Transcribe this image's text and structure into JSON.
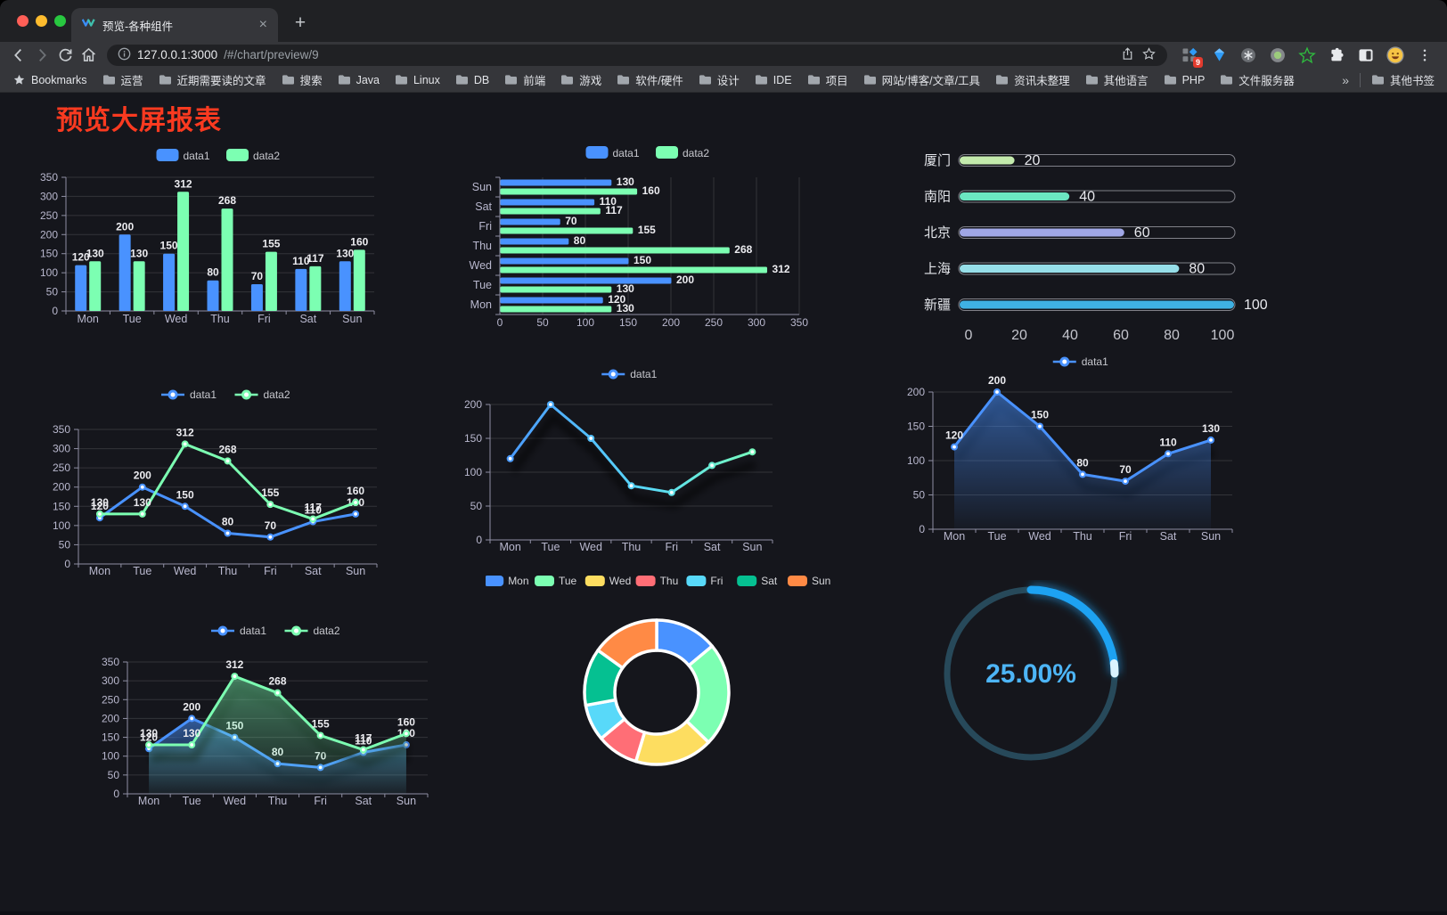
{
  "browser": {
    "tab": {
      "title": "预览-各种组件",
      "close_glyph": "×",
      "new_tab_glyph": "+"
    },
    "address": {
      "host": "127.0.0.1:3000",
      "path": "/#/chart/preview/9"
    },
    "extensions_badge": "9",
    "bookmarks": {
      "bookmarks_label": "Bookmarks",
      "folders": [
        "运营",
        "近期需要读的文章",
        "搜索",
        "Java",
        "Linux",
        "DB",
        "前端",
        "游戏",
        "软件/硬件",
        "设计",
        "IDE",
        "项目",
        "网站/博客/文章/工具",
        "资讯未整理",
        "其他语言",
        "PHP",
        "文件服务器"
      ],
      "overflow_chevron": "»",
      "other_bookmarks_label": "其他书签"
    }
  },
  "page": {
    "title": "预览大屏报表",
    "title_color": "#fb3a20",
    "background": "#15161c"
  },
  "palette": {
    "blue": "#4992ff",
    "green": "#7cffb2",
    "yellow": "#fddd60",
    "red": "#ff6e76",
    "cyan": "#58d9f9",
    "teal": "#05c091",
    "orange": "#ff8a45"
  },
  "chart_data": [
    {
      "id": "bar-vertical",
      "type": "bar",
      "categories": [
        "Mon",
        "Tue",
        "Wed",
        "Thu",
        "Fri",
        "Sat",
        "Sun"
      ],
      "series": [
        {
          "name": "data1",
          "color": "#4992ff",
          "values": [
            120,
            200,
            150,
            80,
            70,
            110,
            130
          ]
        },
        {
          "name": "data2",
          "color": "#7cffb2",
          "values": [
            130,
            130,
            312,
            268,
            155,
            117,
            160
          ]
        }
      ],
      "ylim": [
        0,
        350
      ],
      "yticks": [
        0,
        50,
        100,
        150,
        200,
        250,
        300,
        350
      ],
      "legend": {
        "position": "top",
        "items": [
          "data1",
          "data2"
        ]
      },
      "value_labels": true,
      "grid": true
    },
    {
      "id": "bar-horizontal",
      "type": "bar",
      "orientation": "horizontal",
      "categories": [
        "Mon",
        "Tue",
        "Wed",
        "Thu",
        "Fri",
        "Sat",
        "Sun"
      ],
      "categories_top_to_bottom": [
        "Sun",
        "Sat",
        "Fri",
        "Thu",
        "Wed",
        "Tue",
        "Mon"
      ],
      "series": [
        {
          "name": "data1",
          "color": "#4992ff",
          "values": [
            120,
            200,
            150,
            80,
            70,
            110,
            130
          ]
        },
        {
          "name": "data2",
          "color": "#7cffb2",
          "values": [
            130,
            130,
            312,
            268,
            155,
            117,
            160
          ]
        }
      ],
      "xlim": [
        0,
        350
      ],
      "xticks": [
        0,
        50,
        100,
        150,
        200,
        250,
        300,
        350
      ],
      "legend": {
        "position": "top",
        "items": [
          "data1",
          "data2"
        ]
      },
      "value_labels": true,
      "grid": true
    },
    {
      "id": "progress-bars",
      "type": "bar",
      "variant": "progress-pills",
      "rows": [
        {
          "label": "厦门",
          "value": 20,
          "color": "#c4ebad"
        },
        {
          "label": "南阳",
          "value": 40,
          "color": "#6be6c1"
        },
        {
          "label": "北京",
          "value": 60,
          "color": "#a0a7e6"
        },
        {
          "label": "上海",
          "value": 80,
          "color": "#96dee8"
        },
        {
          "label": "新疆",
          "value": 100,
          "color": "#3fb1e3"
        }
      ],
      "xlim": [
        0,
        100
      ],
      "xticks": [
        0,
        20,
        40,
        60,
        80,
        100
      ],
      "value_labels": true
    },
    {
      "id": "line-two",
      "type": "line",
      "categories": [
        "Mon",
        "Tue",
        "Wed",
        "Thu",
        "Fri",
        "Sat",
        "Sun"
      ],
      "series": [
        {
          "name": "data1",
          "color": "#4992ff",
          "values": [
            120,
            200,
            150,
            80,
            70,
            110,
            130
          ]
        },
        {
          "name": "data2",
          "color": "#7cffb2",
          "values": [
            130,
            130,
            312,
            268,
            155,
            117,
            160
          ]
        }
      ],
      "ylim": [
        0,
        350
      ],
      "yticks": [
        0,
        50,
        100,
        150,
        200,
        250,
        300,
        350
      ],
      "legend": {
        "position": "top",
        "items": [
          "data1",
          "data2"
        ]
      },
      "value_labels": true,
      "markers": true
    },
    {
      "id": "line-gradient",
      "type": "line",
      "categories": [
        "Mon",
        "Tue",
        "Wed",
        "Thu",
        "Fri",
        "Sat",
        "Sun"
      ],
      "series": [
        {
          "name": "data1",
          "gradient": [
            "#4992ff",
            "#58d9f9",
            "#7cffb2"
          ],
          "values": [
            120,
            200,
            150,
            80,
            70,
            110,
            130
          ]
        }
      ],
      "ylim": [
        0,
        200
      ],
      "yticks": [
        0,
        50,
        100,
        150,
        200
      ],
      "legend": {
        "position": "top",
        "items": [
          "data1"
        ]
      },
      "value_labels": false,
      "markers": true,
      "shadow": true
    },
    {
      "id": "line-area",
      "type": "area",
      "categories": [
        "Mon",
        "Tue",
        "Wed",
        "Thu",
        "Fri",
        "Sat",
        "Sun"
      ],
      "series": [
        {
          "name": "data1",
          "color": "#4992ff",
          "area": true,
          "values": [
            120,
            200,
            150,
            80,
            70,
            110,
            130
          ]
        }
      ],
      "ylim": [
        0,
        200
      ],
      "yticks": [
        0,
        50,
        100,
        150,
        200
      ],
      "legend": {
        "position": "top",
        "items": [
          "data1"
        ]
      },
      "value_labels": true,
      "markers": true,
      "shadow": true
    },
    {
      "id": "line-area-two",
      "type": "area",
      "categories": [
        "Mon",
        "Tue",
        "Wed",
        "Thu",
        "Fri",
        "Sat",
        "Sun"
      ],
      "series": [
        {
          "name": "data1",
          "color": "#4992ff",
          "area": true,
          "values": [
            120,
            200,
            150,
            80,
            70,
            110,
            130
          ]
        },
        {
          "name": "data2",
          "color": "#7cffb2",
          "area": true,
          "values": [
            130,
            130,
            312,
            268,
            155,
            117,
            160
          ]
        }
      ],
      "ylim": [
        0,
        350
      ],
      "yticks": [
        0,
        50,
        100,
        150,
        200,
        250,
        300,
        350
      ],
      "legend": {
        "position": "top",
        "items": [
          "data1",
          "data2"
        ]
      },
      "value_labels": true,
      "markers": true,
      "shadow": true
    },
    {
      "id": "donut",
      "type": "pie",
      "inner_radius_ratio": 0.58,
      "legend_position": "top",
      "items": [
        {
          "name": "Mon",
          "value": 120,
          "color": "#4992ff"
        },
        {
          "name": "Tue",
          "value": 200,
          "color": "#7cffb2"
        },
        {
          "name": "Wed",
          "value": 150,
          "color": "#fddd60"
        },
        {
          "name": "Thu",
          "value": 80,
          "color": "#ff6e76"
        },
        {
          "name": "Fri",
          "value": 70,
          "color": "#58d9f9"
        },
        {
          "name": "Sat",
          "value": 110,
          "color": "#05c091"
        },
        {
          "name": "Sun",
          "value": 130,
          "color": "#ff8a45"
        }
      ]
    },
    {
      "id": "gauge",
      "type": "gauge",
      "value": 25,
      "display_text": "25.00%",
      "progress_color": "#1da2f2",
      "track_color": "#27495a",
      "text_color": "#4db5f6",
      "tip_color": "#d9f3ff"
    }
  ]
}
